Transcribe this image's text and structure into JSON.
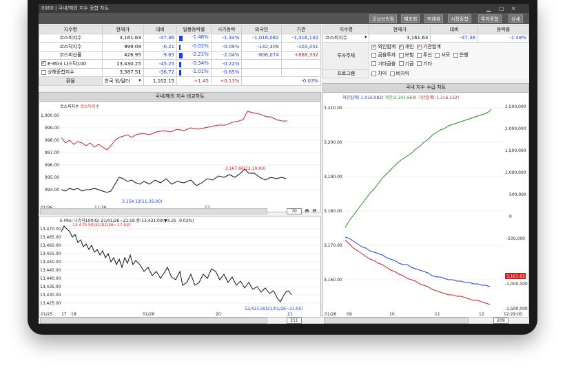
{
  "window": {
    "title": "0060 | 국내/해외 지수 종합 차트"
  },
  "toolbar": {
    "buttons": [
      "모닝브리핑",
      "재조회",
      "미래뷰",
      "시장종합",
      "투자종합",
      "상세"
    ]
  },
  "index_table": {
    "headers": [
      "지수명",
      "현재가",
      "대비",
      "일봉등락률",
      "시가등락",
      "외국인",
      "기관"
    ],
    "rows": [
      {
        "name": "코스피지수",
        "price": "3,161.63",
        "change": "-47.36",
        "rate": "-1.48%",
        "open": "-1.34%",
        "foreign": "-1,016,082",
        "inst": "-1,316,132"
      },
      {
        "name": "코스닥지수",
        "price": "999.09",
        "change": "-0.21",
        "rate": "-0.02%",
        "open": "-0.09%",
        "foreign": "-142,309",
        "inst": "-103,451"
      },
      {
        "name": "코스피선물",
        "price": "426.95",
        "change": "-9.65",
        "rate": "-2.21%",
        "open": "-2.04%",
        "foreign": "-806,074",
        "inst": "+888,332"
      },
      {
        "name": "E-Mini 나스닥100",
        "price": "13,430.25",
        "change": "-45.25",
        "rate": "-0.34%",
        "open": "-0.22%",
        "foreign": "",
        "inst": ""
      },
      {
        "name": "상해종합지수",
        "price": "3,587.51",
        "change": "-36.72",
        "rate": "-1.01%",
        "open": "-0.65%",
        "foreign": "",
        "inst": ""
      }
    ],
    "fx": {
      "label": "환율",
      "currency": "한국 원/달러",
      "price": "1,102.15",
      "change": "+1.45",
      "rate": "+0.13%",
      "open": "-0.03%"
    }
  },
  "flow_panel": {
    "headers": [
      "지수명",
      "현재가",
      "대비",
      "등락률"
    ],
    "index": {
      "name": "코스피지수",
      "price": "3,161.63",
      "change": "-47.36",
      "rate": "-1.48%"
    },
    "investor_label": "투자주체",
    "program_label": "프로그램",
    "investors": [
      "외인합계",
      "개인",
      "기관합계",
      "금융투자",
      "보험",
      "투신",
      "사모",
      "은행",
      "기타금융",
      "기금",
      "기타"
    ],
    "programs": [
      "차익",
      "비차익"
    ]
  },
  "chart1": {
    "title": "국내/해외 지수 비교차트",
    "legend": [
      "코스피지수",
      "코스닥지수"
    ],
    "ylabels": [
      "1,000.00",
      "999.00",
      "998.00",
      "997.00",
      "996.00",
      "995.00",
      "994.00"
    ],
    "xlabels": [
      "01/26",
      "11:30",
      "12"
    ],
    "annot_high": "3,167.60(12:19:00)",
    "annot_low": "3,154.12(11:35:00)",
    "zoom": "70"
  },
  "chart2": {
    "legend": "E-Mini 나스닥100(G)  21/01/26~21:19 종:13,431.00(▼3.25 -0.02%)",
    "ylabels": [
      "13,470.00",
      "13,465.00",
      "13,460.00",
      "13,455.00",
      "13,450.00",
      "13,445.00",
      "13,440.00",
      "13,435.00",
      "13,430.00",
      "13,425.00"
    ],
    "xlabels": [
      "01/25",
      "17",
      "18",
      "01/26",
      "20",
      "21"
    ],
    "annot_high": "13,470.50(21/01/26~17:52)",
    "annot_low": "13,423.50(21/01/26~21:05)",
    "zoom": "211"
  },
  "chart3": {
    "title": "국내 지수 수급 차트",
    "legend": [
      "외인합계(-1,016,082)",
      "개인(2,341,660)",
      "기관합계(-1,316,132)"
    ],
    "ylabels_left": [
      "3,210.00",
      "3,200.00",
      "3,190.00",
      "3,180.00",
      "3,170.00",
      "3,160.00"
    ],
    "ylabels_right": [
      "2,500,000",
      "2,000,000",
      "1,500,000",
      "1,000,000",
      "500,000",
      "0",
      "-500,000",
      "-1,000,000",
      "-1,500,000"
    ],
    "xlabels": [
      "01/26",
      "09",
      "10",
      "11",
      "12",
      "12:29:00"
    ],
    "price_tag": "3,161.63",
    "zoom": "209"
  },
  "colors": {
    "red": "#d41f1f",
    "blue": "#1f3fd6",
    "green": "#1f8f1f",
    "black": "#111111"
  }
}
